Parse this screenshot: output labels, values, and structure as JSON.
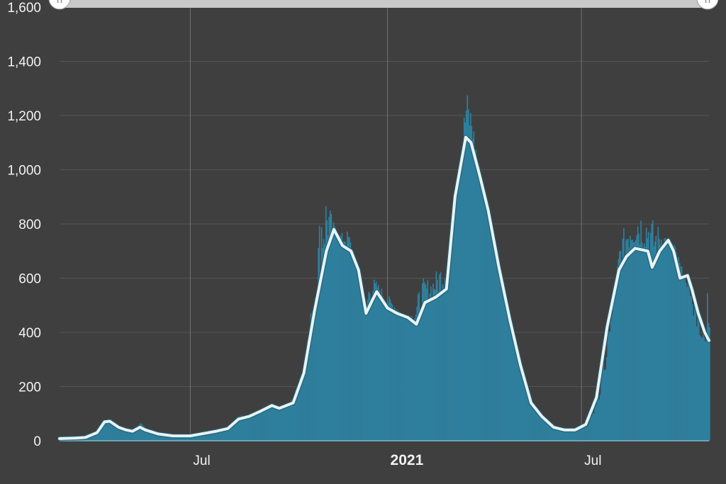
{
  "chart_data": {
    "type": "bar",
    "title": "",
    "xlabel": "",
    "ylabel": "",
    "ylim": [
      0,
      1600
    ],
    "y_ticks": [
      "0",
      "200",
      "400",
      "600",
      "800",
      "1,000",
      "1,200",
      "1,400",
      "1,600"
    ],
    "y_tick_values": [
      0,
      200,
      400,
      600,
      800,
      1000,
      1200,
      1400,
      1600
    ],
    "x_range": [
      "2020-03-01",
      "2021-10-28"
    ],
    "x_ticks": [
      {
        "label": "Jul",
        "date": "2020-07-01",
        "major": false
      },
      {
        "label": "2021",
        "date": "2021-01-01",
        "major": true
      },
      {
        "label": "Jul",
        "date": "2021-07-01",
        "major": false
      }
    ],
    "grid": true,
    "bar_color": "#2e7f9d",
    "line_color": "#e8f3f4",
    "series": [
      {
        "type": "bar",
        "points": [
          [
            "2020-03-01",
            0
          ],
          [
            "2020-03-15",
            2
          ],
          [
            "2020-03-25",
            5
          ],
          [
            "2020-04-05",
            35
          ],
          [
            "2020-04-10",
            75
          ],
          [
            "2020-04-15",
            80
          ],
          [
            "2020-04-25",
            45
          ],
          [
            "2020-05-05",
            35
          ],
          [
            "2020-05-15",
            65
          ],
          [
            "2020-05-25",
            40
          ],
          [
            "2020-06-05",
            20
          ],
          [
            "2020-06-20",
            15
          ],
          [
            "2020-07-01",
            15
          ],
          [
            "2020-07-15",
            25
          ],
          [
            "2020-07-25",
            35
          ],
          [
            "2020-08-05",
            45
          ],
          [
            "2020-08-15",
            95
          ],
          [
            "2020-08-25",
            90
          ],
          [
            "2020-09-05",
            115
          ],
          [
            "2020-09-15",
            140
          ],
          [
            "2020-09-25",
            110
          ],
          [
            "2020-10-05",
            165
          ],
          [
            "2020-10-15",
            300
          ],
          [
            "2020-10-25",
            600
          ],
          [
            "2020-10-31",
            950
          ],
          [
            "2020-11-05",
            930
          ],
          [
            "2020-11-10",
            820
          ],
          [
            "2020-11-15",
            760
          ],
          [
            "2020-11-25",
            780
          ],
          [
            "2020-12-05",
            600
          ],
          [
            "2020-12-10",
            470
          ],
          [
            "2020-12-15",
            620
          ],
          [
            "2020-12-25",
            570
          ],
          [
            "2021-01-05",
            520
          ],
          [
            "2021-01-15",
            460
          ],
          [
            "2021-01-25",
            470
          ],
          [
            "2021-02-01",
            600
          ],
          [
            "2021-02-10",
            600
          ],
          [
            "2021-02-20",
            660
          ],
          [
            "2021-02-28",
            740
          ],
          [
            "2021-03-05",
            900
          ],
          [
            "2021-03-10",
            1080
          ],
          [
            "2021-03-15",
            1310
          ],
          [
            "2021-03-20",
            1230
          ],
          [
            "2021-03-25",
            1060
          ],
          [
            "2021-04-01",
            900
          ],
          [
            "2021-04-10",
            780
          ],
          [
            "2021-04-15",
            660
          ],
          [
            "2021-04-25",
            420
          ],
          [
            "2021-05-05",
            240
          ],
          [
            "2021-05-15",
            130
          ],
          [
            "2021-05-25",
            80
          ],
          [
            "2021-06-05",
            50
          ],
          [
            "2021-06-15",
            38
          ],
          [
            "2021-06-25",
            40
          ],
          [
            "2021-07-05",
            50
          ],
          [
            "2021-07-15",
            110
          ],
          [
            "2021-07-25",
            300
          ],
          [
            "2021-08-05",
            730
          ],
          [
            "2021-08-15",
            870
          ],
          [
            "2021-08-20",
            890
          ],
          [
            "2021-08-25",
            860
          ],
          [
            "2021-09-01",
            840
          ],
          [
            "2021-09-10",
            800
          ],
          [
            "2021-09-20",
            740
          ],
          [
            "2021-09-25",
            730
          ],
          [
            "2021-10-01",
            660
          ],
          [
            "2021-10-10",
            520
          ],
          [
            "2021-10-15",
            410
          ],
          [
            "2021-10-20",
            370
          ],
          [
            "2021-10-24",
            350
          ],
          [
            "2021-10-27",
            730
          ],
          [
            "2021-10-28",
            730
          ]
        ]
      },
      {
        "type": "line",
        "points": [
          [
            "2020-03-01",
            8
          ],
          [
            "2020-03-15",
            10
          ],
          [
            "2020-03-25",
            12
          ],
          [
            "2020-04-05",
            30
          ],
          [
            "2020-04-12",
            70
          ],
          [
            "2020-04-17",
            72
          ],
          [
            "2020-04-25",
            50
          ],
          [
            "2020-05-02",
            40
          ],
          [
            "2020-05-08",
            35
          ],
          [
            "2020-05-15",
            50
          ],
          [
            "2020-05-20",
            40
          ],
          [
            "2020-06-01",
            25
          ],
          [
            "2020-06-15",
            18
          ],
          [
            "2020-07-01",
            18
          ],
          [
            "2020-07-15",
            28
          ],
          [
            "2020-07-25",
            35
          ],
          [
            "2020-08-05",
            45
          ],
          [
            "2020-08-15",
            80
          ],
          [
            "2020-08-25",
            90
          ],
          [
            "2020-09-05",
            110
          ],
          [
            "2020-09-15",
            130
          ],
          [
            "2020-09-22",
            120
          ],
          [
            "2020-10-05",
            140
          ],
          [
            "2020-10-15",
            250
          ],
          [
            "2020-10-25",
            480
          ],
          [
            "2020-11-05",
            700
          ],
          [
            "2020-11-12",
            780
          ],
          [
            "2020-11-20",
            720
          ],
          [
            "2020-11-28",
            700
          ],
          [
            "2020-12-05",
            630
          ],
          [
            "2020-12-12",
            470
          ],
          [
            "2020-12-18",
            520
          ],
          [
            "2020-12-22",
            550
          ],
          [
            "2021-01-01",
            490
          ],
          [
            "2021-01-10",
            470
          ],
          [
            "2021-01-20",
            455
          ],
          [
            "2021-01-28",
            430
          ],
          [
            "2021-02-05",
            510
          ],
          [
            "2021-02-15",
            530
          ],
          [
            "2021-02-25",
            560
          ],
          [
            "2021-03-05",
            900
          ],
          [
            "2021-03-15",
            1120
          ],
          [
            "2021-03-20",
            1100
          ],
          [
            "2021-03-28",
            980
          ],
          [
            "2021-04-05",
            850
          ],
          [
            "2021-04-15",
            640
          ],
          [
            "2021-04-25",
            450
          ],
          [
            "2021-05-05",
            280
          ],
          [
            "2021-05-15",
            140
          ],
          [
            "2021-05-25",
            90
          ],
          [
            "2021-06-05",
            50
          ],
          [
            "2021-06-15",
            40
          ],
          [
            "2021-06-25",
            40
          ],
          [
            "2021-07-05",
            60
          ],
          [
            "2021-07-15",
            160
          ],
          [
            "2021-07-25",
            420
          ],
          [
            "2021-08-05",
            630
          ],
          [
            "2021-08-12",
            680
          ],
          [
            "2021-08-20",
            710
          ],
          [
            "2021-09-01",
            700
          ],
          [
            "2021-09-05",
            640
          ],
          [
            "2021-09-12",
            700
          ],
          [
            "2021-09-20",
            740
          ],
          [
            "2021-09-25",
            700
          ],
          [
            "2021-10-01",
            600
          ],
          [
            "2021-10-08",
            610
          ],
          [
            "2021-10-12",
            560
          ],
          [
            "2021-10-18",
            470
          ],
          [
            "2021-10-24",
            400
          ],
          [
            "2021-10-28",
            370
          ]
        ]
      }
    ]
  }
}
